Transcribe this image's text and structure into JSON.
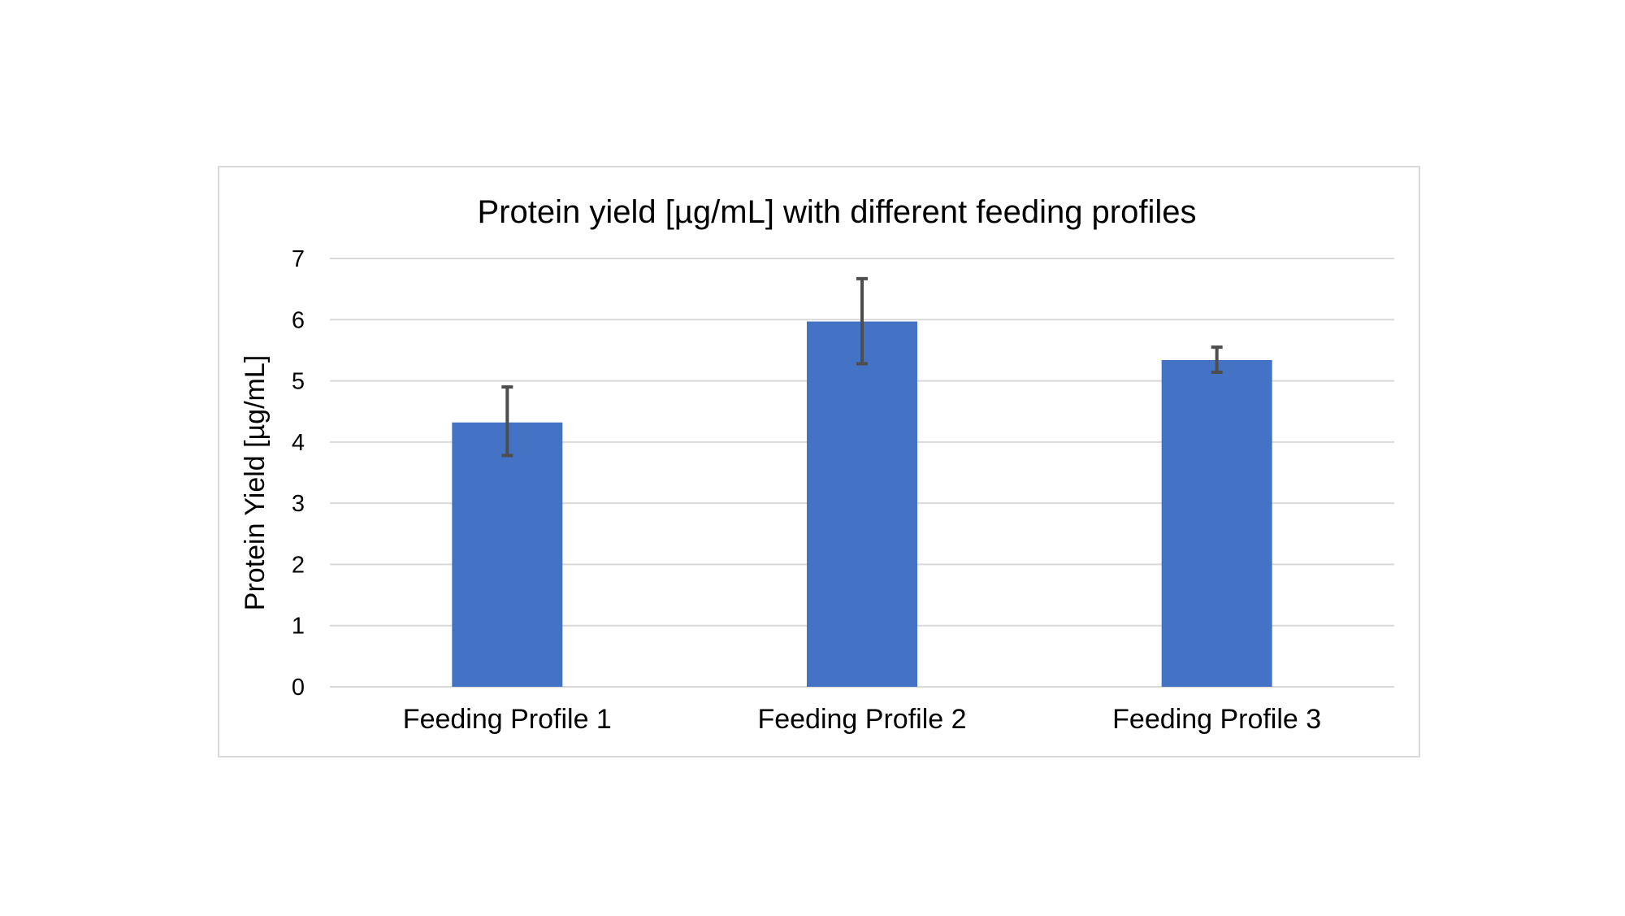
{
  "chart_data": {
    "type": "bar",
    "title": "Protein yield [µg/mL] with different feeding profiles",
    "xlabel": "",
    "ylabel": "Protein Yield [µg/mL]",
    "categories": [
      "Feeding Profile 1",
      "Feeding Profile 2",
      "Feeding Profile 3"
    ],
    "values": [
      4.32,
      5.97,
      5.34
    ],
    "error_low": [
      3.78,
      5.28,
      5.14
    ],
    "error_high": [
      4.9,
      6.67,
      5.55
    ],
    "ylim": [
      0,
      7
    ],
    "yticks": [
      "0",
      "1",
      "2",
      "3",
      "4",
      "5",
      "6",
      "7"
    ],
    "grid": true,
    "legend": "none",
    "colors": {
      "bar": "#4472c4",
      "error_bar": "#4d4d4d",
      "grid": "#d9d9d9"
    }
  }
}
